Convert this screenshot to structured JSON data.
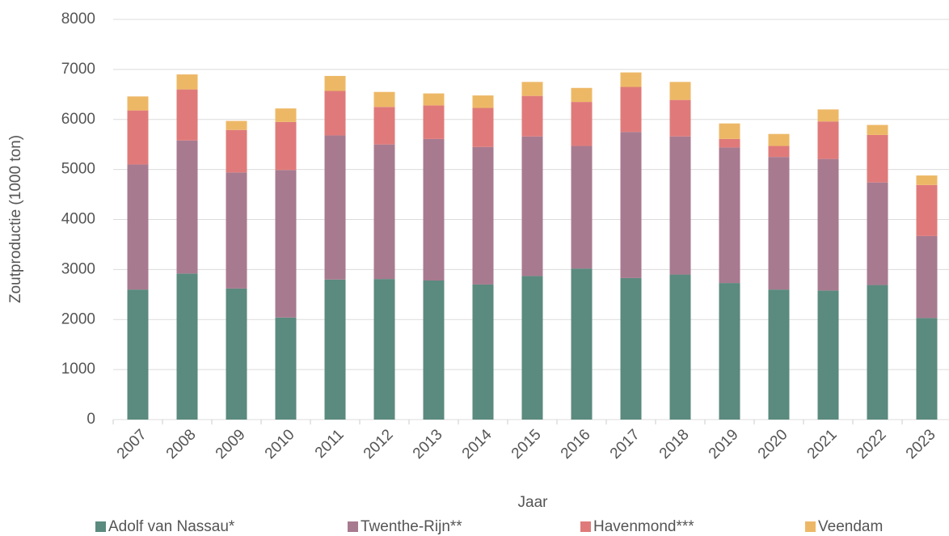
{
  "chart_data": {
    "type": "stacked_bar",
    "y_label": "Zoutproductie (1000 ton)",
    "x_label": "Jaar",
    "categories": [
      "2007",
      "2008",
      "2009",
      "2010",
      "2011",
      "2012",
      "2013",
      "2014",
      "2015",
      "2016",
      "2017",
      "2018",
      "2019",
      "2020",
      "2021",
      "2022",
      "2023"
    ],
    "series": [
      {
        "name": "Adolf van Nassau*",
        "color": "#5b8a7e",
        "values": [
          2600,
          2920,
          2620,
          2040,
          2800,
          2810,
          2780,
          2700,
          2870,
          3020,
          2830,
          2900,
          2730,
          2600,
          2580,
          2690,
          2030
        ]
      },
      {
        "name": "Twenthe-Rijn**",
        "color": "#a87a8f",
        "values": [
          2500,
          2660,
          2320,
          2950,
          2880,
          2690,
          2830,
          2750,
          2790,
          2450,
          2920,
          2760,
          2710,
          2650,
          2630,
          2050,
          1640
        ]
      },
      {
        "name": "Havenmond***",
        "color": "#e07a7a",
        "values": [
          1080,
          1020,
          850,
          960,
          890,
          750,
          670,
          780,
          810,
          880,
          900,
          730,
          170,
          220,
          750,
          950,
          1020
        ]
      },
      {
        "name": "Veendam",
        "color": "#edb866",
        "values": [
          280,
          300,
          180,
          270,
          300,
          300,
          240,
          250,
          280,
          280,
          290,
          360,
          310,
          240,
          240,
          200,
          190
        ]
      }
    ],
    "ylim": [
      0,
      8000
    ],
    "yticks": [
      0,
      1000,
      2000,
      3000,
      4000,
      5000,
      6000,
      7000,
      8000
    ],
    "grid": true,
    "legend": "bottom"
  }
}
